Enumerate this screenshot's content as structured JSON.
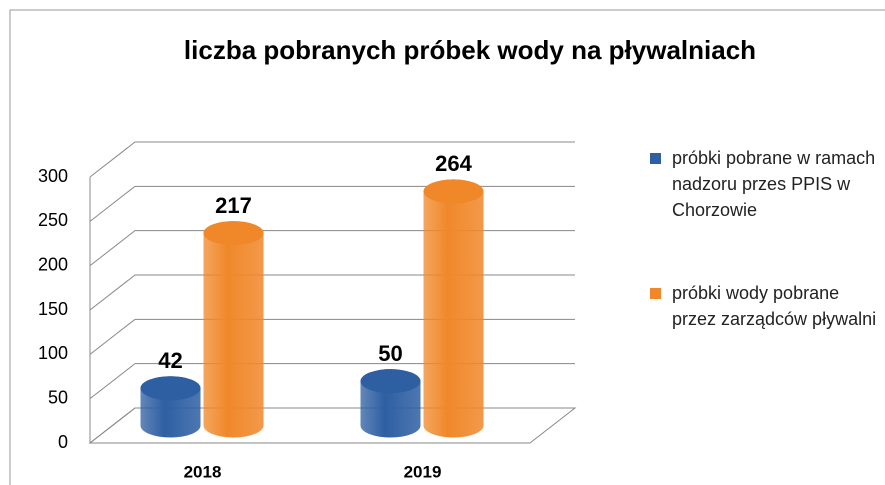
{
  "chart_data": {
    "type": "bar3d",
    "title": "liczba pobranych próbek wody na pływalniach",
    "categories": [
      "2018",
      "2019"
    ],
    "series": [
      {
        "name": "próbki pobrane w ramach nadzoru przes PPIS w Chorzowie",
        "color": "#2e5fa3",
        "values": [
          42,
          50
        ]
      },
      {
        "name": "próbki wody pobrane przez zarządców pływalni",
        "color": "#f0882a",
        "values": [
          217,
          264
        ]
      }
    ],
    "ylim": [
      0,
      300
    ],
    "yticks": [
      0,
      50,
      100,
      150,
      200,
      250,
      300
    ],
    "grid": true,
    "legend": "right"
  }
}
